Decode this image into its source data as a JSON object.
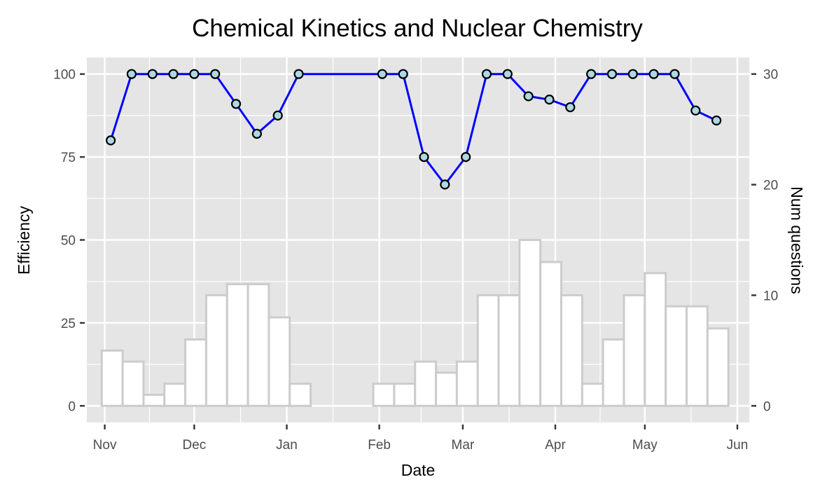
{
  "chart_data": {
    "type": "bar",
    "title": "Chemical Kinetics and Nuclear Chemistry",
    "xlabel": "Date",
    "ylabel": "Efficiency",
    "y2label": "Num questions",
    "x_tick_labels": [
      "Nov",
      "Dec",
      "Jan",
      "Feb",
      "Mar",
      "Apr",
      "May",
      "Jun"
    ],
    "x_ticks": [
      "2022-11-01",
      "2022-12-01",
      "2023-01-01",
      "2023-02-01",
      "2023-03-01",
      "2023-04-01",
      "2023-05-01",
      "2023-06-01"
    ],
    "xlim": [
      "2022-10-26",
      "2023-06-05"
    ],
    "ylim": [
      -5,
      105
    ],
    "y_ticks": [
      0,
      25,
      50,
      75,
      100
    ],
    "y2lim": [
      -1.5,
      31.5
    ],
    "y2_ticks": [
      0,
      10,
      20,
      30
    ],
    "grid": true,
    "background": "#e5e5e5",
    "series": [
      {
        "type": "bar",
        "axis": "right",
        "fill": "#ffffff",
        "stroke": "#cccccc",
        "bin_width_days": 7,
        "bins": [
          {
            "start": "2022-10-31",
            "value": 5
          },
          {
            "start": "2022-11-07",
            "value": 4
          },
          {
            "start": "2022-11-14",
            "value": 1
          },
          {
            "start": "2022-11-21",
            "value": 2
          },
          {
            "start": "2022-11-28",
            "value": 6
          },
          {
            "start": "2022-12-05",
            "value": 10
          },
          {
            "start": "2022-12-12",
            "value": 11
          },
          {
            "start": "2022-12-19",
            "value": 11
          },
          {
            "start": "2022-12-26",
            "value": 8
          },
          {
            "start": "2023-01-02",
            "value": 2
          },
          {
            "start": "2023-01-30",
            "value": 2
          },
          {
            "start": "2023-02-06",
            "value": 2
          },
          {
            "start": "2023-02-13",
            "value": 4
          },
          {
            "start": "2023-02-20",
            "value": 3
          },
          {
            "start": "2023-02-27",
            "value": 4
          },
          {
            "start": "2023-03-06",
            "value": 10
          },
          {
            "start": "2023-03-13",
            "value": 10
          },
          {
            "start": "2023-03-20",
            "value": 15
          },
          {
            "start": "2023-03-27",
            "value": 13
          },
          {
            "start": "2023-04-03",
            "value": 10
          },
          {
            "start": "2023-04-10",
            "value": 2
          },
          {
            "start": "2023-04-17",
            "value": 6
          },
          {
            "start": "2023-04-24",
            "value": 10
          },
          {
            "start": "2023-05-01",
            "value": 12
          },
          {
            "start": "2023-05-08",
            "value": 9
          },
          {
            "start": "2023-05-15",
            "value": 9
          },
          {
            "start": "2023-05-22",
            "value": 7
          }
        ]
      },
      {
        "type": "line",
        "axis": "left",
        "color": "#0000ff",
        "marker_fill": "#add8e6",
        "marker_stroke": "#000000",
        "points": [
          {
            "x": "2022-11-03",
            "y": 80
          },
          {
            "x": "2022-11-10",
            "y": 100
          },
          {
            "x": "2022-11-17",
            "y": 100
          },
          {
            "x": "2022-11-24",
            "y": 100
          },
          {
            "x": "2022-12-01",
            "y": 100
          },
          {
            "x": "2022-12-08",
            "y": 100
          },
          {
            "x": "2022-12-15",
            "y": 91
          },
          {
            "x": "2022-12-22",
            "y": 82
          },
          {
            "x": "2022-12-29",
            "y": 87.5
          },
          {
            "x": "2023-01-05",
            "y": 100
          },
          {
            "x": "2023-02-02",
            "y": 100
          },
          {
            "x": "2023-02-09",
            "y": 100
          },
          {
            "x": "2023-02-16",
            "y": 75
          },
          {
            "x": "2023-02-23",
            "y": 66.7
          },
          {
            "x": "2023-03-02",
            "y": 75
          },
          {
            "x": "2023-03-09",
            "y": 100
          },
          {
            "x": "2023-03-16",
            "y": 100
          },
          {
            "x": "2023-03-23",
            "y": 93.3
          },
          {
            "x": "2023-03-30",
            "y": 92.3
          },
          {
            "x": "2023-04-06",
            "y": 90
          },
          {
            "x": "2023-04-13",
            "y": 100
          },
          {
            "x": "2023-04-20",
            "y": 100
          },
          {
            "x": "2023-04-27",
            "y": 100
          },
          {
            "x": "2023-05-04",
            "y": 100
          },
          {
            "x": "2023-05-11",
            "y": 100
          },
          {
            "x": "2023-05-18",
            "y": 89
          },
          {
            "x": "2023-05-25",
            "y": 86
          }
        ]
      }
    ]
  }
}
